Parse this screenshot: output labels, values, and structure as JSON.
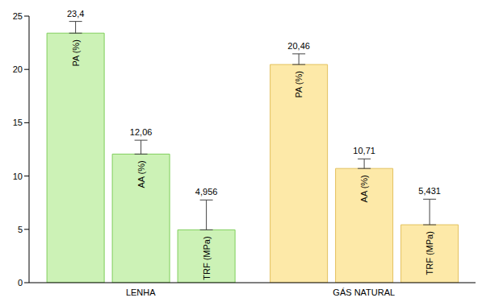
{
  "chart_data": {
    "type": "bar",
    "categories": [
      "LENHA",
      "GÁS NATURAL"
    ],
    "series": [
      {
        "name": "PA (%)",
        "values": [
          23.4,
          20.46
        ],
        "value_labels": [
          "23,4",
          "20,46"
        ],
        "errors": [
          1.1,
          1.0
        ],
        "colors": [
          "#ccf2b6",
          "#fde9a8"
        ]
      },
      {
        "name": "AA (%)",
        "values": [
          12.06,
          10.71
        ],
        "value_labels": [
          "12,06",
          "10,71"
        ],
        "errors": [
          1.3,
          0.9
        ],
        "colors": [
          "#ccf2b6",
          "#fde9a8"
        ]
      },
      {
        "name": "TRF (MPa)",
        "values": [
          4.956,
          5.431
        ],
        "value_labels": [
          "4,956",
          "5,431"
        ],
        "errors": [
          2.8,
          2.4
        ],
        "colors": [
          "#ccf2b6",
          "#fde9a8"
        ]
      }
    ],
    "ylim": [
      0,
      25
    ],
    "yticks": [
      0,
      5,
      10,
      15,
      20,
      25
    ],
    "grid": false,
    "data_labels": true
  }
}
